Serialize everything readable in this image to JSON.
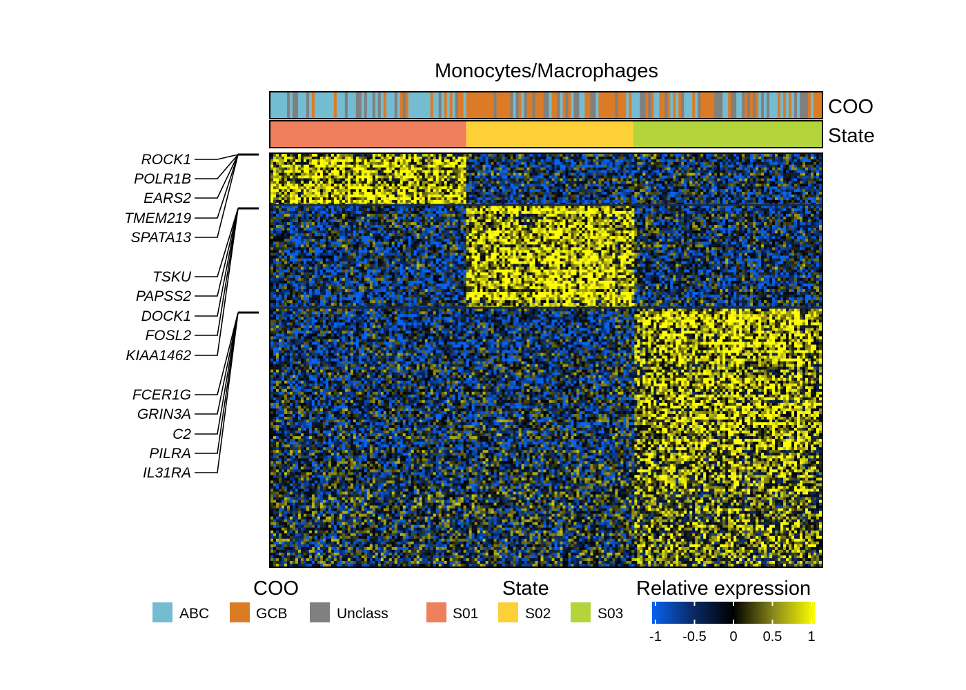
{
  "chart_data": {
    "type": "heatmap",
    "title": "Monocytes/Macrophages",
    "annotation_tracks": [
      {
        "name": "COO",
        "categories": [
          "ABC",
          "GCB",
          "Unclass"
        ],
        "colors": {
          "ABC": "#74bcd1",
          "GCB": "#dc7b26",
          "Unclass": "#808080"
        }
      },
      {
        "name": "State",
        "segments": [
          {
            "label": "S01",
            "start_fraction": 0.0,
            "end_fraction": 0.355
          },
          {
            "label": "S02",
            "start_fraction": 0.355,
            "end_fraction": 0.658
          },
          {
            "label": "S03",
            "start_fraction": 0.658,
            "end_fraction": 1.0
          }
        ],
        "colors": {
          "S01": "#ef7f5d",
          "S02": "#fed038",
          "S03": "#b3d43a"
        }
      }
    ],
    "row_blocks": [
      {
        "high_in": "S01",
        "row_fraction": 0.125,
        "labeled_genes": [
          "ROCK1",
          "POLR1B",
          "EARS2",
          "TMEM219",
          "SPATA13"
        ]
      },
      {
        "high_in": "S02",
        "row_fraction": 0.25,
        "labeled_genes": [
          "TSKU",
          "PAPSS2",
          "DOCK1",
          "FOSL2",
          "KIAA1462"
        ]
      },
      {
        "high_in": "S03",
        "row_fraction": 0.625,
        "labeled_genes": [
          "FCER1G",
          "GRIN3A",
          "C2",
          "PILRA",
          "IL31RA"
        ]
      }
    ],
    "color_scale": {
      "label": "Relative expression",
      "min": -1,
      "max": 1,
      "stops": [
        {
          "value": -1,
          "color": "#0863ee"
        },
        {
          "value": -0.5,
          "color": "#0a2a66"
        },
        {
          "value": 0,
          "color": "#000000"
        },
        {
          "value": 0.5,
          "color": "#8a8a1a"
        },
        {
          "value": 1,
          "color": "#ffff00"
        }
      ],
      "ticks": [
        "-1",
        "-0.5",
        "0",
        "0.5",
        "1"
      ]
    }
  },
  "legend": {
    "coo": {
      "title": "COO",
      "items": [
        "ABC",
        "GCB",
        "Unclass"
      ]
    },
    "state": {
      "title": "State",
      "items": [
        "S01",
        "S02",
        "S03"
      ]
    },
    "expression": {
      "title": "Relative expression"
    }
  }
}
